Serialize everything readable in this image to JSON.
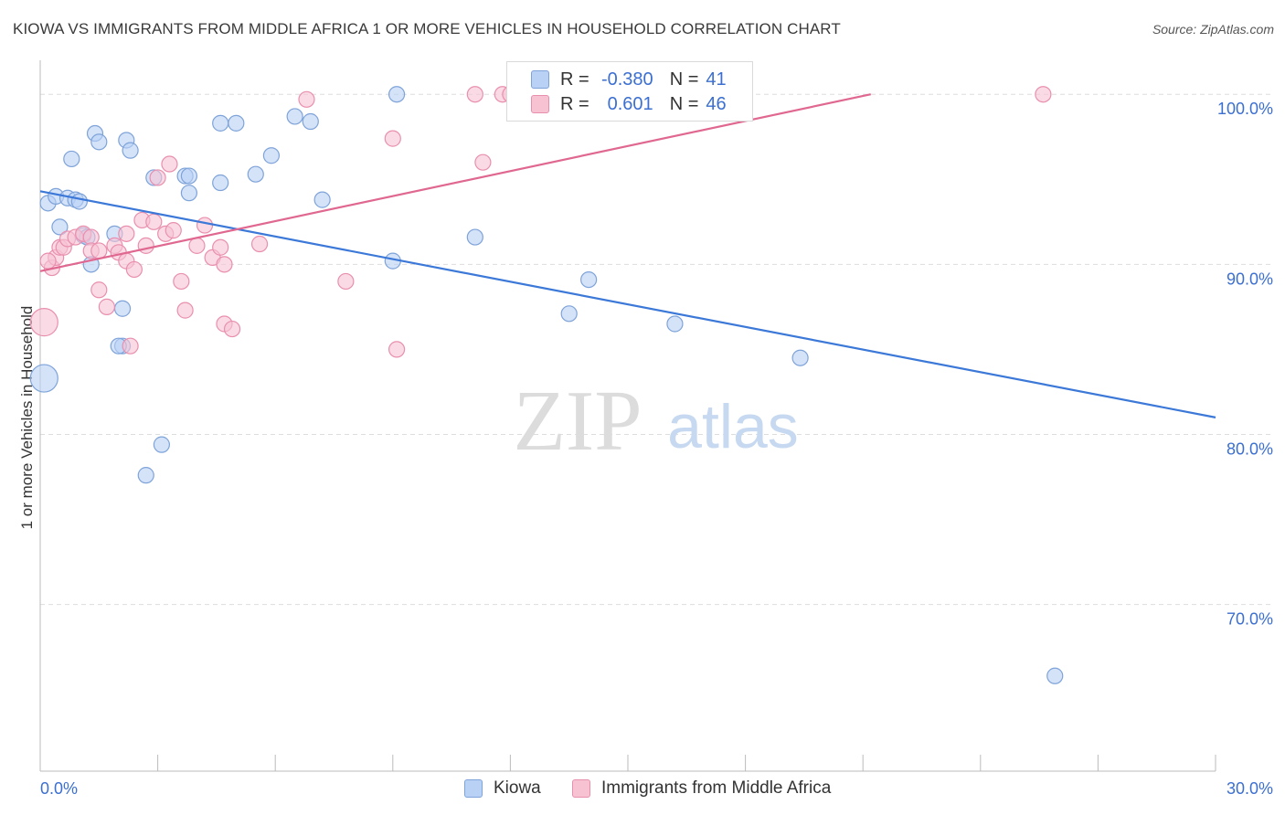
{
  "title": "KIOWA VS IMMIGRANTS FROM MIDDLE AFRICA 1 OR MORE VEHICLES IN HOUSEHOLD CORRELATION CHART",
  "source": "Source: ZipAtlas.com",
  "watermark": {
    "zip": "ZIP",
    "atlas": "atlas"
  },
  "legend": {
    "kiowa": {
      "r_label": "R =",
      "r_value": "-0.380",
      "n_label": "N =",
      "n_value": "41"
    },
    "immigrants": {
      "r_label": "R =",
      "r_value": "0.601",
      "n_label": "N =",
      "n_value": "46"
    }
  },
  "colors": {
    "kiowa_fill": "#b9d1f5",
    "kiowa_stroke": "#7ea3d9",
    "kiowa_line": "#3b78d8",
    "immig_fill": "#f7c3d3",
    "immig_stroke": "#e98fae",
    "immig_line": "#e06890",
    "axis_label": "#3b6fd1",
    "grid": "#dddddd"
  },
  "chart_data": {
    "type": "scatter",
    "title": "KIOWA VS IMMIGRANTS FROM MIDDLE AFRICA 1 OR MORE VEHICLES IN HOUSEHOLD CORRELATION CHART",
    "xlabel": "",
    "ylabel": "1 or more Vehicles in Household",
    "xlim": [
      0,
      30
    ],
    "ylim": [
      60.2,
      102
    ],
    "x_tick_labels": [
      "0.0%",
      "30.0%"
    ],
    "y_ticks": [
      70,
      80,
      90,
      100
    ],
    "y_tick_labels": [
      "70.0%",
      "80.0%",
      "90.0%",
      "100.0%"
    ],
    "series": [
      {
        "name": "Kiowa",
        "points": [
          [
            0.1,
            83.3
          ],
          [
            0.2,
            93.6
          ],
          [
            0.4,
            94.0
          ],
          [
            0.5,
            92.2
          ],
          [
            0.7,
            93.9
          ],
          [
            0.8,
            96.2
          ],
          [
            0.9,
            93.8
          ],
          [
            1.0,
            93.7
          ],
          [
            1.1,
            91.7
          ],
          [
            1.2,
            91.6
          ],
          [
            1.3,
            90.0
          ],
          [
            1.4,
            97.7
          ],
          [
            1.5,
            97.2
          ],
          [
            1.9,
            91.8
          ],
          [
            2.1,
            85.2
          ],
          [
            2.1,
            87.4
          ],
          [
            2.2,
            97.3
          ],
          [
            2.3,
            96.7
          ],
          [
            2.0,
            85.2
          ],
          [
            2.7,
            77.6
          ],
          [
            2.9,
            95.1
          ],
          [
            3.1,
            79.4
          ],
          [
            3.7,
            95.2
          ],
          [
            3.8,
            95.2
          ],
          [
            3.8,
            94.2
          ],
          [
            4.6,
            94.8
          ],
          [
            4.6,
            98.3
          ],
          [
            5.0,
            98.3
          ],
          [
            5.5,
            95.3
          ],
          [
            5.9,
            96.4
          ],
          [
            6.5,
            98.7
          ],
          [
            6.9,
            98.4
          ],
          [
            7.2,
            93.8
          ],
          [
            9.0,
            90.2
          ],
          [
            9.1,
            100.0
          ],
          [
            11.1,
            91.6
          ],
          [
            13.5,
            87.1
          ],
          [
            14.0,
            89.1
          ],
          [
            16.2,
            86.5
          ],
          [
            19.4,
            84.5
          ],
          [
            25.9,
            65.8
          ]
        ]
      },
      {
        "name": "Immigrants from Middle Africa",
        "points": [
          [
            0.1,
            86.6
          ],
          [
            0.3,
            89.8
          ],
          [
            0.4,
            90.4
          ],
          [
            0.5,
            91.0
          ],
          [
            0.6,
            91.0
          ],
          [
            0.7,
            91.5
          ],
          [
            0.9,
            91.6
          ],
          [
            1.1,
            91.8
          ],
          [
            1.3,
            91.6
          ],
          [
            1.3,
            90.8
          ],
          [
            1.5,
            90.8
          ],
          [
            1.5,
            88.5
          ],
          [
            1.7,
            87.5
          ],
          [
            1.9,
            91.1
          ],
          [
            2.0,
            90.7
          ],
          [
            2.2,
            91.8
          ],
          [
            2.2,
            90.2
          ],
          [
            2.3,
            85.2
          ],
          [
            2.4,
            89.7
          ],
          [
            2.6,
            92.6
          ],
          [
            2.7,
            91.1
          ],
          [
            2.9,
            92.5
          ],
          [
            3.0,
            95.1
          ],
          [
            3.2,
            91.8
          ],
          [
            3.3,
            95.9
          ],
          [
            3.4,
            92.0
          ],
          [
            3.6,
            89.0
          ],
          [
            3.7,
            87.3
          ],
          [
            4.0,
            91.1
          ],
          [
            4.2,
            92.3
          ],
          [
            4.4,
            90.4
          ],
          [
            4.6,
            91.0
          ],
          [
            4.7,
            90.0
          ],
          [
            4.7,
            86.5
          ],
          [
            4.9,
            86.2
          ],
          [
            5.6,
            91.2
          ],
          [
            6.8,
            99.7
          ],
          [
            7.8,
            89.0
          ],
          [
            9.0,
            97.4
          ],
          [
            9.1,
            85.0
          ],
          [
            11.1,
            100.0
          ],
          [
            11.3,
            96.0
          ],
          [
            11.8,
            100.0
          ],
          [
            12.0,
            100.0
          ],
          [
            25.6,
            100.0
          ],
          [
            0.2,
            90.2
          ]
        ]
      }
    ],
    "trendlines": [
      {
        "series": "Kiowa",
        "x": [
          0,
          30
        ],
        "y": [
          94.3,
          81.0
        ]
      },
      {
        "series": "Immigrants from Middle Africa",
        "x": [
          0,
          21.2
        ],
        "y": [
          89.6,
          100.0
        ]
      }
    ]
  }
}
